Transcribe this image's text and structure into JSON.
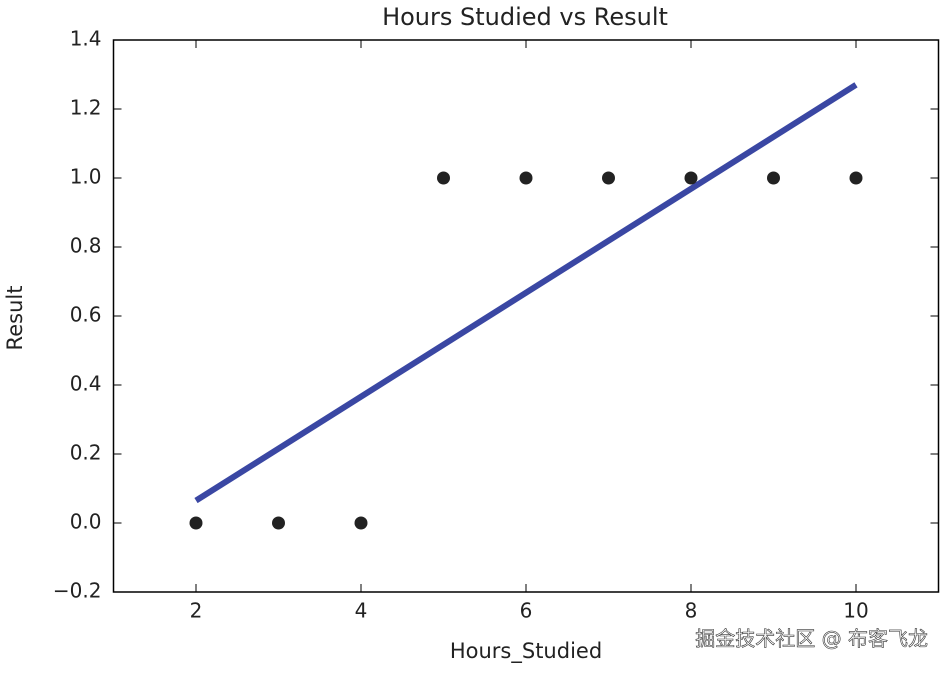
{
  "chart_data": {
    "type": "scatter",
    "title": "Hours Studied vs Result",
    "x_label": "Hours_Studied",
    "y_label": "Result",
    "x": [
      2,
      3,
      4,
      5,
      6,
      7,
      8,
      9,
      10
    ],
    "values": [
      0,
      0,
      0,
      1,
      1,
      1,
      1,
      1,
      1
    ],
    "color": "#222222",
    "fit_line": {
      "x": [
        2,
        10
      ],
      "values": [
        0.065,
        1.27
      ],
      "color": "#3a47a3"
    },
    "xlim": [
      1,
      11
    ],
    "xticks": [
      2,
      4,
      6,
      8,
      10
    ],
    "ylim": [
      -0.2,
      1.4
    ],
    "yticks": [
      {
        "value": -0.2,
        "label": "−0.2"
      },
      {
        "value": 0,
        "label": "0.0"
      },
      0.2,
      0.4,
      0.6,
      0.8,
      {
        "value": 1,
        "label": "1.0"
      },
      1.2,
      1.4
    ],
    "grid": false,
    "watermark": "掘金技术社区 @ 布客飞龙"
  }
}
